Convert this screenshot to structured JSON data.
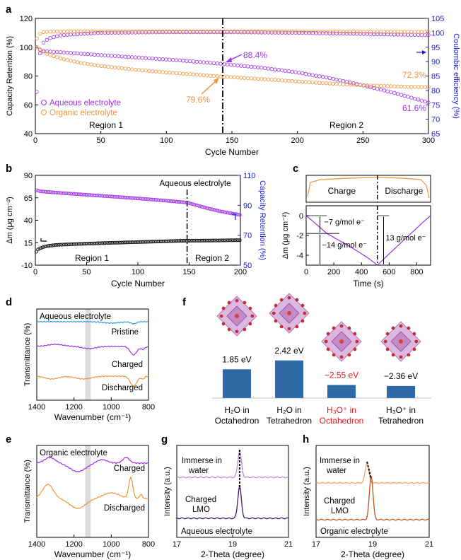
{
  "colors": {
    "purple": "#9b30e8",
    "orange": "#f0943a",
    "blue": "#1a1ae6",
    "black": "#000000",
    "red": "#e8141e",
    "ftir_blue": "#2a9bd6",
    "bar_blue": "#2e6aa6",
    "xrd_dark_purple": "#3d1a70",
    "xrd_light_purple": "#b98be8",
    "xrd_dark_orange": "#b8561a",
    "xrd_light_orange": "#f2a765"
  },
  "panels": {
    "a": {
      "letter": "a"
    },
    "b": {
      "letter": "b"
    },
    "c": {
      "letter": "c"
    },
    "d": {
      "letter": "d"
    },
    "e": {
      "letter": "e"
    },
    "f": {
      "letter": "f"
    },
    "g": {
      "letter": "g"
    },
    "h": {
      "letter": "h"
    }
  },
  "chart_data": [
    {
      "id": "a",
      "type": "scatter",
      "xlabel": "Cycle Number",
      "ylabel": "Capacity Retention (%)",
      "y2label": "Coulombic efficiency (%)",
      "xlim": [
        0,
        300
      ],
      "ylim": [
        40,
        120
      ],
      "y2lim": [
        65,
        105
      ],
      "xticks": [
        0,
        50,
        100,
        150,
        200,
        250,
        300
      ],
      "yticks": [
        40,
        60,
        80,
        100,
        120
      ],
      "y2ticks": [
        65,
        70,
        75,
        80,
        85,
        90,
        95,
        100,
        105
      ],
      "divider_x": 143,
      "regions": [
        "Region 1",
        "Region 2"
      ],
      "series": [
        {
          "name": "Aqueous electrolyte",
          "color": "purple",
          "axis": "left",
          "x": [
            1,
            5,
            10,
            20,
            35,
            50,
            75,
            100,
            125,
            143,
            175,
            200,
            225,
            250,
            275,
            300
          ],
          "values": [
            100,
            97.5,
            97,
            96.5,
            95.5,
            94.5,
            93,
            91.5,
            89.8,
            88.4,
            85.5,
            82.5,
            78.5,
            73.5,
            68,
            61.6
          ]
        },
        {
          "name": "Organic electrolyte",
          "color": "orange",
          "axis": "left",
          "x": [
            1,
            5,
            10,
            20,
            35,
            50,
            75,
            100,
            125,
            143,
            175,
            200,
            225,
            250,
            275,
            300
          ],
          "values": [
            100,
            97,
            95,
            92,
            89,
            87,
            84.5,
            82.5,
            80.8,
            79.6,
            77.8,
            76.2,
            74.8,
            73.6,
            72.8,
            72.3
          ]
        },
        {
          "name": "Aqueous CE",
          "color": "purple",
          "axis": "right",
          "x": [
            1,
            3,
            6,
            10,
            20,
            50,
            100,
            150,
            200,
            250,
            300
          ],
          "values": [
            79.5,
            92,
            96.5,
            98,
            99.2,
            100,
            100.2,
            100.2,
            100,
            99.6,
            99.2
          ]
        },
        {
          "name": "Organic CE",
          "color": "orange",
          "axis": "right",
          "x": [
            1,
            3,
            6,
            10,
            20,
            50,
            100,
            150,
            200,
            250,
            300
          ],
          "values": [
            98,
            99.6,
            100.2,
            100.4,
            100.5,
            100.5,
            100.5,
            100.5,
            100.5,
            100.4,
            100.3
          ]
        }
      ],
      "annotations": [
        "88.4%",
        "79.6%",
        "72.3%",
        "61.6%"
      ]
    },
    {
      "id": "b",
      "type": "scatter",
      "xlabel": "Cycle Number",
      "ylabel": "Δm (μg cm⁻²)",
      "y2label": "Capacity Retention (%)",
      "xlim": [
        0,
        200
      ],
      "ylim": [
        -10,
        90
      ],
      "y2lim": [
        50,
        110
      ],
      "xticks": [
        0,
        50,
        100,
        150,
        200
      ],
      "yticks": [
        -10,
        15,
        40,
        65,
        90
      ],
      "y2ticks": [
        50,
        70,
        90,
        110
      ],
      "divider_x": 148,
      "regions": [
        "Region 1",
        "Region 2"
      ],
      "title_note": "Aqueous electrolyte",
      "series": [
        {
          "name": "Capacity Retention",
          "color": "purple",
          "axis": "right",
          "x": [
            1,
            5,
            25,
            50,
            75,
            100,
            125,
            148,
            165,
            180,
            200
          ],
          "values": [
            100,
            99.3,
            98.2,
            97,
            95.8,
            94.6,
            93.2,
            91.8,
            88.5,
            86,
            83.5
          ]
        },
        {
          "name": "Δm",
          "color": "black",
          "axis": "left",
          "x": [
            1,
            3,
            10,
            20,
            40,
            60,
            80,
            100,
            120,
            140,
            148,
            160,
            180,
            200
          ],
          "values": [
            5,
            8,
            11,
            12.5,
            13.5,
            14.3,
            15,
            15.7,
            16.3,
            17,
            17.2,
            17.3,
            17.5,
            17.8
          ]
        }
      ]
    },
    {
      "id": "c",
      "type": "line",
      "xlabel": "Time (s)",
      "ylabel": "Δm (μg cm⁻²)",
      "xlim": [
        0,
        900
      ],
      "ylim": [
        -5,
        1
      ],
      "xticks": [
        0,
        200,
        400,
        600,
        800
      ],
      "yticks": [
        0,
        -2,
        -4
      ],
      "divider_x": 515,
      "phases": [
        "Charge",
        "Discharge"
      ],
      "x": [
        0,
        60,
        150,
        250,
        350,
        450,
        515,
        560,
        650,
        750,
        850,
        900
      ],
      "values": [
        0,
        -0.7,
        -1.8,
        -2.6,
        -3.4,
        -4.3,
        -5.0,
        -4.4,
        -3.2,
        -1.9,
        -0.6,
        0
      ],
      "annotations": [
        "−7 g/mol e⁻",
        "−14 g/mol e⁻",
        "13 g/mol e⁻"
      ]
    },
    {
      "id": "d",
      "type": "line",
      "xlabel": "Wavenumber (cm⁻¹)",
      "ylabel": "Transmittance (%)",
      "xlim": [
        1400,
        800
      ],
      "xticks": [
        1400,
        1200,
        1000,
        800
      ],
      "highlight_band": [
        1140,
        1110
      ],
      "title_note": "Aqueous electrolyte",
      "series": [
        {
          "name": "Pristine",
          "color": "ftir_blue"
        },
        {
          "name": "Charged",
          "color": "purple"
        },
        {
          "name": "Discharged",
          "color": "orange"
        }
      ]
    },
    {
      "id": "e",
      "type": "line",
      "xlabel": "Wavenumber (cm⁻¹)",
      "ylabel": "Transmittance (%)",
      "xlim": [
        1400,
        800
      ],
      "xticks": [
        1400,
        1200,
        1000,
        800
      ],
      "highlight_band": [
        1140,
        1110
      ],
      "title_note": "Organic electrolyte",
      "series": [
        {
          "name": "Charged",
          "color": "purple"
        },
        {
          "name": "Discharged",
          "color": "orange"
        }
      ]
    },
    {
      "id": "f",
      "type": "bar",
      "categories": [
        "H₂O in Octahedron",
        "H₂O in Tetrahedron",
        "H₃O⁺ in Octahedron",
        "H₃O⁺ in Tetrahedron"
      ],
      "category_lines": [
        [
          "H₂O in",
          "Octahedron"
        ],
        [
          "H₂O in",
          "Tetrahedron"
        ],
        [
          "H₃O⁺ in",
          "Octahedron"
        ],
        [
          "H₃O⁺ in",
          "Tetrahedron"
        ]
      ],
      "values": [
        1.85,
        2.42,
        -2.55,
        -2.36
      ],
      "labels": [
        "1.85 eV",
        "2.42 eV",
        "−2.55 eV",
        "−2.36 eV"
      ],
      "label_colors": [
        "black",
        "black",
        "red",
        "black"
      ]
    },
    {
      "id": "g",
      "type": "line",
      "xlabel": "2-Theta (degree)",
      "ylabel": "Intensity (a.u.)",
      "xlim": [
        17,
        21
      ],
      "xticks": [
        17,
        19,
        21
      ],
      "title_note": "Aqueous electrolyte",
      "series": [
        {
          "name": "Immerse in water",
          "color": "xrd_light_purple",
          "peak": 19.25
        },
        {
          "name": "Charged LMO",
          "color": "xrd_dark_purple",
          "peak": 19.25
        }
      ],
      "label_lines": [
        [
          "Immerse in",
          "water"
        ],
        [
          "Charged",
          "LMO"
        ]
      ]
    },
    {
      "id": "h",
      "type": "line",
      "xlabel": "2-Theta (degree)",
      "ylabel": "Intensity (a.u.)",
      "xlim": [
        17,
        21
      ],
      "xticks": [
        17,
        19,
        21
      ],
      "title_note": "Organic electrolyte",
      "series": [
        {
          "name": "Immerse in water",
          "color": "xrd_light_orange",
          "peak": 18.8
        },
        {
          "name": "Charged LMO",
          "color": "xrd_dark_orange",
          "peak": 18.95
        }
      ],
      "label_lines": [
        [
          "Immerse in",
          "water"
        ],
        [
          "Charged",
          "LMO"
        ]
      ]
    }
  ]
}
